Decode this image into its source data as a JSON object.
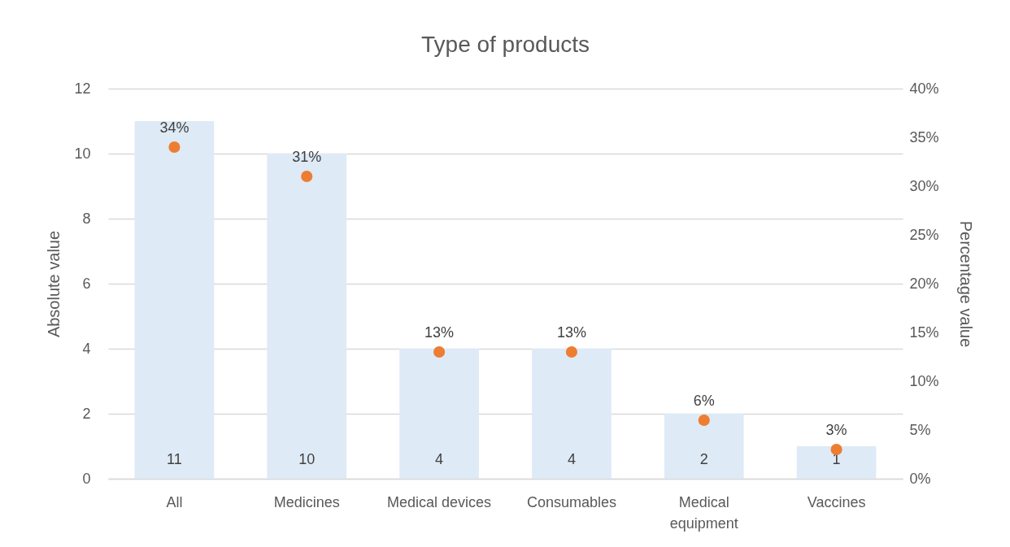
{
  "chart_data": {
    "type": "bar",
    "title": "Type of products",
    "ylabel": "Absolute value",
    "y2label": "Percentage value",
    "categories": [
      "All",
      "Medicines",
      "Medical devices",
      "Consumables",
      "Medical equipment",
      "Vaccines"
    ],
    "series": [
      {
        "color": "#deeaf6",
        "values": [
          11,
          10,
          4,
          4,
          2,
          1
        ],
        "value_labels": [
          "11",
          "10",
          "4",
          "4",
          "2",
          "1"
        ]
      },
      {
        "type": "scatter",
        "axis": "y2",
        "color": "#ed7d31",
        "values": [
          34,
          31,
          13,
          13,
          6,
          3
        ],
        "value_labels": [
          "34%",
          "31%",
          "13%",
          "13%",
          "6%",
          "3%"
        ]
      }
    ],
    "ylim": [
      0,
      12
    ],
    "yticks": [
      0,
      2,
      4,
      6,
      8,
      10,
      12
    ],
    "y2lim": [
      0,
      40
    ],
    "y2ticks": [
      {
        "value": 0,
        "label": "0%"
      },
      {
        "value": 5,
        "label": "5%"
      },
      {
        "value": 10,
        "label": "10%"
      },
      {
        "value": 15,
        "label": "15%"
      },
      {
        "value": 20,
        "label": "20%"
      },
      {
        "value": 25,
        "label": "25%"
      },
      {
        "value": 30,
        "label": "30%"
      },
      {
        "value": 35,
        "label": "35%"
      },
      {
        "value": 40,
        "label": "40%"
      }
    ],
    "grid": "y",
    "marker": "circle"
  }
}
